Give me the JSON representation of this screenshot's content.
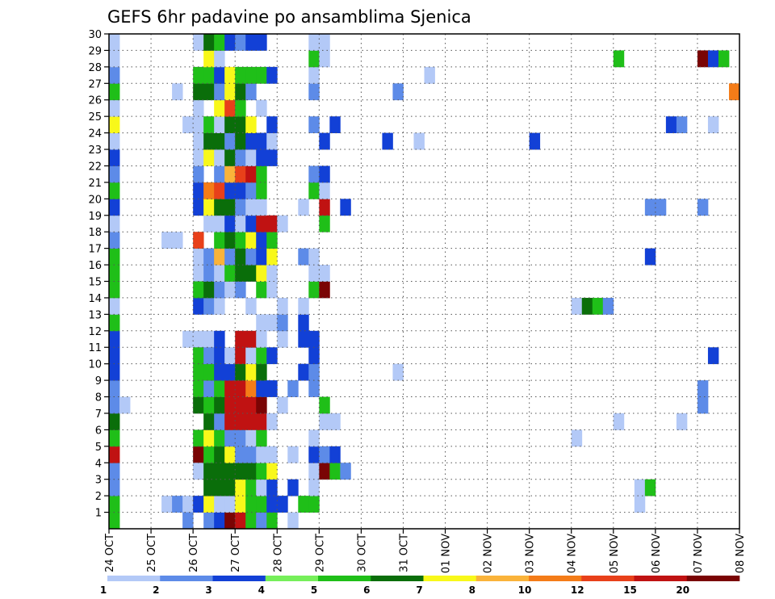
{
  "chart_data": {
    "type": "heatmap",
    "title": "GEFS 6hr padavine po ansamblima Sjenica",
    "xlabel": "",
    "ylabel": "",
    "x_unit": "6-hour steps from 24 OCT 00Z",
    "x_range": [
      0,
      60
    ],
    "y_range": [
      0,
      30
    ],
    "x_tick_labels": [
      "24 OCT",
      "25 OCT",
      "26 OCT",
      "27 OCT",
      "28 OCT",
      "29 OCT",
      "30 OCT",
      "31 OCT",
      "01 NOV",
      "02 NOV",
      "03 NOV",
      "04 NOV",
      "05 NOV",
      "06 NOV",
      "07 NOV",
      "08 NOV"
    ],
    "y_tick_labels": [
      "1",
      "2",
      "3",
      "4",
      "5",
      "6",
      "7",
      "8",
      "9",
      "10",
      "11",
      "12",
      "13",
      "14",
      "15",
      "16",
      "17",
      "18",
      "19",
      "20",
      "21",
      "22",
      "23",
      "24",
      "25",
      "26",
      "27",
      "28",
      "29",
      "30"
    ],
    "colorbar": {
      "labels": [
        "1",
        "2",
        "3",
        "4",
        "5",
        "6",
        "7",
        "8",
        "10",
        "12",
        "15",
        "20"
      ],
      "colors": [
        "#b3c9f7",
        "#5d8be8",
        "#1240d6",
        "#76ef5a",
        "#1fbf18",
        "#0a6e0a",
        "#f8f81a",
        "#fab33a",
        "#f47c18",
        "#e8401a",
        "#c01212",
        "#7a0404"
      ]
    },
    "cells": [
      [
        0,
        0,
        4
      ],
      [
        0,
        1,
        4
      ],
      [
        0,
        2,
        1
      ],
      [
        0,
        3,
        1
      ],
      [
        0,
        4,
        10
      ],
      [
        0,
        5,
        4
      ],
      [
        0,
        6,
        5
      ],
      [
        0,
        7,
        1
      ],
      [
        0,
        8,
        1
      ],
      [
        0,
        9,
        2
      ],
      [
        0,
        10,
        2
      ],
      [
        0,
        11,
        2
      ],
      [
        0,
        12,
        4
      ],
      [
        0,
        13,
        0
      ],
      [
        0,
        14,
        4
      ],
      [
        0,
        15,
        4
      ],
      [
        0,
        16,
        4
      ],
      [
        0,
        17,
        1
      ],
      [
        0,
        18,
        0
      ],
      [
        0,
        19,
        2
      ],
      [
        0,
        20,
        4
      ],
      [
        0,
        21,
        1
      ],
      [
        0,
        22,
        2
      ],
      [
        0,
        23,
        0
      ],
      [
        0,
        24,
        6
      ],
      [
        0,
        25,
        0
      ],
      [
        0,
        26,
        4
      ],
      [
        0,
        27,
        1
      ],
      [
        0,
        28,
        0
      ],
      [
        0,
        29,
        0
      ],
      [
        1,
        7,
        0
      ],
      [
        5,
        17,
        0
      ],
      [
        6,
        17,
        0
      ],
      [
        5,
        1,
        0
      ],
      [
        6,
        1,
        1
      ],
      [
        7,
        1,
        0
      ],
      [
        7,
        0,
        1
      ],
      [
        7,
        11,
        0
      ],
      [
        8,
        11,
        0
      ],
      [
        9,
        11,
        0
      ],
      [
        6,
        26,
        0
      ],
      [
        7,
        24,
        0
      ],
      [
        8,
        24,
        0
      ],
      [
        8,
        25,
        0
      ],
      [
        8,
        3,
        0
      ],
      [
        9,
        3,
        0
      ],
      [
        8,
        1,
        2
      ],
      [
        8,
        19,
        2
      ],
      [
        8,
        20,
        2
      ],
      [
        8,
        21,
        1
      ],
      [
        8,
        13,
        2
      ],
      [
        8,
        15,
        0
      ],
      [
        8,
        16,
        0
      ],
      [
        9,
        16,
        0
      ],
      [
        8,
        14,
        4
      ],
      [
        8,
        4,
        11
      ],
      [
        8,
        5,
        4
      ],
      [
        8,
        3,
        0
      ],
      [
        8,
        7,
        5
      ],
      [
        8,
        8,
        4
      ],
      [
        8,
        9,
        4
      ],
      [
        8,
        10,
        4
      ],
      [
        8,
        29,
        0
      ],
      [
        8,
        17,
        9
      ],
      [
        8,
        22,
        0
      ],
      [
        8,
        26,
        5
      ],
      [
        8,
        27,
        4
      ],
      [
        8,
        23,
        0
      ],
      [
        9,
        0,
        1
      ],
      [
        9,
        1,
        6
      ],
      [
        9,
        2,
        5
      ],
      [
        9,
        3,
        5
      ],
      [
        9,
        4,
        4
      ],
      [
        9,
        5,
        6
      ],
      [
        9,
        6,
        5
      ],
      [
        9,
        7,
        4
      ],
      [
        9,
        8,
        1
      ],
      [
        9,
        9,
        4
      ],
      [
        9,
        10,
        1
      ],
      [
        9,
        13,
        1
      ],
      [
        9,
        14,
        5
      ],
      [
        9,
        15,
        1
      ],
      [
        9,
        16,
        1
      ],
      [
        9,
        18,
        0
      ],
      [
        9,
        19,
        6
      ],
      [
        9,
        20,
        8
      ],
      [
        9,
        22,
        6
      ],
      [
        9,
        23,
        5
      ],
      [
        9,
        24,
        4
      ],
      [
        9,
        26,
        5
      ],
      [
        9,
        27,
        4
      ],
      [
        9,
        28,
        6
      ],
      [
        9,
        29,
        5
      ],
      [
        10,
        0,
        2
      ],
      [
        10,
        1,
        0
      ],
      [
        10,
        2,
        5
      ],
      [
        10,
        3,
        5
      ],
      [
        10,
        4,
        5
      ],
      [
        10,
        5,
        4
      ],
      [
        10,
        6,
        1
      ],
      [
        10,
        7,
        5
      ],
      [
        10,
        8,
        4
      ],
      [
        10,
        9,
        2
      ],
      [
        10,
        10,
        2
      ],
      [
        10,
        11,
        2
      ],
      [
        10,
        13,
        0
      ],
      [
        10,
        14,
        1
      ],
      [
        10,
        15,
        0
      ],
      [
        10,
        16,
        7
      ],
      [
        10,
        17,
        4
      ],
      [
        10,
        18,
        0
      ],
      [
        10,
        19,
        5
      ],
      [
        10,
        20,
        9
      ],
      [
        10,
        21,
        1
      ],
      [
        10,
        22,
        0
      ],
      [
        10,
        23,
        5
      ],
      [
        10,
        24,
        0
      ],
      [
        10,
        25,
        6
      ],
      [
        10,
        26,
        1
      ],
      [
        10,
        27,
        2
      ],
      [
        10,
        28,
        0
      ],
      [
        10,
        29,
        4
      ],
      [
        11,
        0,
        11
      ],
      [
        11,
        1,
        0
      ],
      [
        11,
        2,
        5
      ],
      [
        11,
        3,
        5
      ],
      [
        11,
        4,
        6
      ],
      [
        11,
        5,
        1
      ],
      [
        11,
        6,
        10
      ],
      [
        11,
        7,
        10
      ],
      [
        11,
        8,
        10
      ],
      [
        11,
        9,
        2
      ],
      [
        11,
        10,
        0
      ],
      [
        11,
        14,
        0
      ],
      [
        11,
        15,
        4
      ],
      [
        11,
        16,
        1
      ],
      [
        11,
        17,
        5
      ],
      [
        11,
        18,
        2
      ],
      [
        11,
        19,
        5
      ],
      [
        11,
        20,
        2
      ],
      [
        11,
        21,
        7
      ],
      [
        11,
        22,
        5
      ],
      [
        11,
        23,
        1
      ],
      [
        11,
        24,
        5
      ],
      [
        11,
        25,
        9
      ],
      [
        11,
        26,
        6
      ],
      [
        11,
        27,
        6
      ],
      [
        11,
        29,
        2
      ],
      [
        12,
        0,
        10
      ],
      [
        12,
        1,
        6
      ],
      [
        12,
        2,
        6
      ],
      [
        12,
        3,
        5
      ],
      [
        12,
        4,
        1
      ],
      [
        12,
        5,
        1
      ],
      [
        12,
        6,
        10
      ],
      [
        12,
        7,
        10
      ],
      [
        12,
        8,
        10
      ],
      [
        12,
        9,
        5
      ],
      [
        12,
        10,
        10
      ],
      [
        12,
        11,
        10
      ],
      [
        12,
        14,
        1
      ],
      [
        12,
        15,
        5
      ],
      [
        12,
        16,
        5
      ],
      [
        12,
        17,
        4
      ],
      [
        12,
        18,
        0
      ],
      [
        12,
        19,
        1
      ],
      [
        12,
        20,
        2
      ],
      [
        12,
        21,
        9
      ],
      [
        12,
        22,
        1
      ],
      [
        12,
        23,
        5
      ],
      [
        12,
        24,
        5
      ],
      [
        12,
        25,
        4
      ],
      [
        12,
        26,
        5
      ],
      [
        12,
        27,
        4
      ],
      [
        12,
        29,
        1
      ],
      [
        13,
        0,
        4
      ],
      [
        13,
        1,
        4
      ],
      [
        13,
        2,
        4
      ],
      [
        13,
        3,
        5
      ],
      [
        13,
        4,
        1
      ],
      [
        13,
        5,
        0
      ],
      [
        13,
        6,
        10
      ],
      [
        13,
        7,
        10
      ],
      [
        13,
        8,
        8
      ],
      [
        13,
        9,
        6
      ],
      [
        13,
        10,
        0
      ],
      [
        13,
        11,
        10
      ],
      [
        13,
        13,
        0
      ],
      [
        13,
        15,
        5
      ],
      [
        13,
        16,
        1
      ],
      [
        13,
        17,
        6
      ],
      [
        13,
        18,
        2
      ],
      [
        13,
        19,
        0
      ],
      [
        13,
        20,
        1
      ],
      [
        13,
        21,
        10
      ],
      [
        13,
        22,
        0
      ],
      [
        13,
        23,
        2
      ],
      [
        13,
        24,
        6
      ],
      [
        13,
        26,
        1
      ],
      [
        13,
        27,
        4
      ],
      [
        13,
        29,
        2
      ],
      [
        14,
        0,
        1
      ],
      [
        14,
        1,
        4
      ],
      [
        14,
        2,
        0
      ],
      [
        14,
        3,
        4
      ],
      [
        14,
        4,
        0
      ],
      [
        14,
        5,
        4
      ],
      [
        14,
        6,
        10
      ],
      [
        14,
        7,
        11
      ],
      [
        14,
        8,
        2
      ],
      [
        14,
        9,
        5
      ],
      [
        14,
        10,
        4
      ],
      [
        14,
        11,
        0
      ],
      [
        14,
        12,
        0
      ],
      [
        14,
        14,
        4
      ],
      [
        14,
        15,
        6
      ],
      [
        14,
        16,
        2
      ],
      [
        14,
        17,
        2
      ],
      [
        14,
        18,
        10
      ],
      [
        14,
        19,
        0
      ],
      [
        14,
        20,
        4
      ],
      [
        14,
        21,
        4
      ],
      [
        14,
        22,
        2
      ],
      [
        14,
        23,
        2
      ],
      [
        14,
        25,
        0
      ],
      [
        14,
        27,
        4
      ],
      [
        14,
        29,
        2
      ],
      [
        15,
        0,
        4
      ],
      [
        15,
        1,
        2
      ],
      [
        15,
        2,
        2
      ],
      [
        15,
        3,
        6
      ],
      [
        15,
        4,
        0
      ],
      [
        15,
        6,
        0
      ],
      [
        15,
        8,
        2
      ],
      [
        15,
        10,
        2
      ],
      [
        15,
        12,
        0
      ],
      [
        15,
        14,
        0
      ],
      [
        15,
        15,
        0
      ],
      [
        15,
        16,
        6
      ],
      [
        15,
        17,
        4
      ],
      [
        15,
        18,
        10
      ],
      [
        15,
        22,
        2
      ],
      [
        15,
        23,
        0
      ],
      [
        15,
        24,
        2
      ],
      [
        15,
        27,
        2
      ],
      [
        16,
        1,
        2
      ],
      [
        16,
        7,
        0
      ],
      [
        16,
        11,
        0
      ],
      [
        16,
        12,
        1
      ],
      [
        16,
        13,
        0
      ],
      [
        16,
        18,
        0
      ],
      [
        17,
        0,
        0
      ],
      [
        17,
        2,
        2
      ],
      [
        17,
        4,
        0
      ],
      [
        17,
        8,
        1
      ],
      [
        18,
        1,
        4
      ],
      [
        18,
        11,
        2
      ],
      [
        18,
        12,
        2
      ],
      [
        18,
        9,
        2
      ],
      [
        18,
        13,
        0
      ],
      [
        18,
        16,
        1
      ],
      [
        18,
        19,
        0
      ],
      [
        19,
        1,
        4
      ],
      [
        19,
        2,
        0
      ],
      [
        19,
        3,
        0
      ],
      [
        19,
        4,
        2
      ],
      [
        19,
        5,
        0
      ],
      [
        19,
        8,
        1
      ],
      [
        19,
        9,
        1
      ],
      [
        19,
        10,
        2
      ],
      [
        19,
        11,
        2
      ],
      [
        19,
        14,
        4
      ],
      [
        19,
        15,
        0
      ],
      [
        19,
        16,
        0
      ],
      [
        19,
        20,
        4
      ],
      [
        19,
        21,
        1
      ],
      [
        19,
        24,
        1
      ],
      [
        19,
        26,
        1
      ],
      [
        19,
        27,
        0
      ],
      [
        19,
        28,
        4
      ],
      [
        19,
        29,
        0
      ],
      [
        20,
        3,
        11
      ],
      [
        20,
        4,
        1
      ],
      [
        20,
        6,
        0
      ],
      [
        20,
        7,
        4
      ],
      [
        20,
        14,
        11
      ],
      [
        20,
        15,
        0
      ],
      [
        20,
        18,
        4
      ],
      [
        20,
        19,
        10
      ],
      [
        20,
        20,
        0
      ],
      [
        20,
        21,
        2
      ],
      [
        20,
        23,
        2
      ],
      [
        20,
        28,
        0
      ],
      [
        20,
        29,
        0
      ],
      [
        21,
        3,
        4
      ],
      [
        21,
        4,
        2
      ],
      [
        21,
        6,
        0
      ],
      [
        21,
        24,
        2
      ],
      [
        22,
        3,
        1
      ],
      [
        22,
        19,
        2
      ],
      [
        26,
        23,
        2
      ],
      [
        27,
        9,
        0
      ],
      [
        27,
        26,
        1
      ],
      [
        29,
        23,
        0
      ],
      [
        30,
        27,
        0
      ],
      [
        40,
        23,
        2
      ],
      [
        44,
        13,
        0
      ],
      [
        44,
        5,
        0
      ],
      [
        45,
        13,
        5
      ],
      [
        46,
        13,
        4
      ],
      [
        47,
        13,
        1
      ],
      [
        48,
        6,
        0
      ],
      [
        48,
        28,
        4
      ],
      [
        50,
        2,
        0
      ],
      [
        50,
        1,
        0
      ],
      [
        51,
        2,
        4
      ],
      [
        51,
        16,
        2
      ],
      [
        51,
        19,
        1
      ],
      [
        52,
        19,
        1
      ],
      [
        53,
        24,
        2
      ],
      [
        54,
        24,
        1
      ],
      [
        54,
        6,
        0
      ],
      [
        56,
        7,
        1
      ],
      [
        56,
        8,
        1
      ],
      [
        56,
        19,
        1
      ],
      [
        56,
        28,
        11
      ],
      [
        57,
        28,
        2
      ],
      [
        58,
        28,
        4
      ],
      [
        57,
        10,
        2
      ],
      [
        57,
        24,
        0
      ],
      [
        59,
        26,
        8
      ]
    ]
  }
}
